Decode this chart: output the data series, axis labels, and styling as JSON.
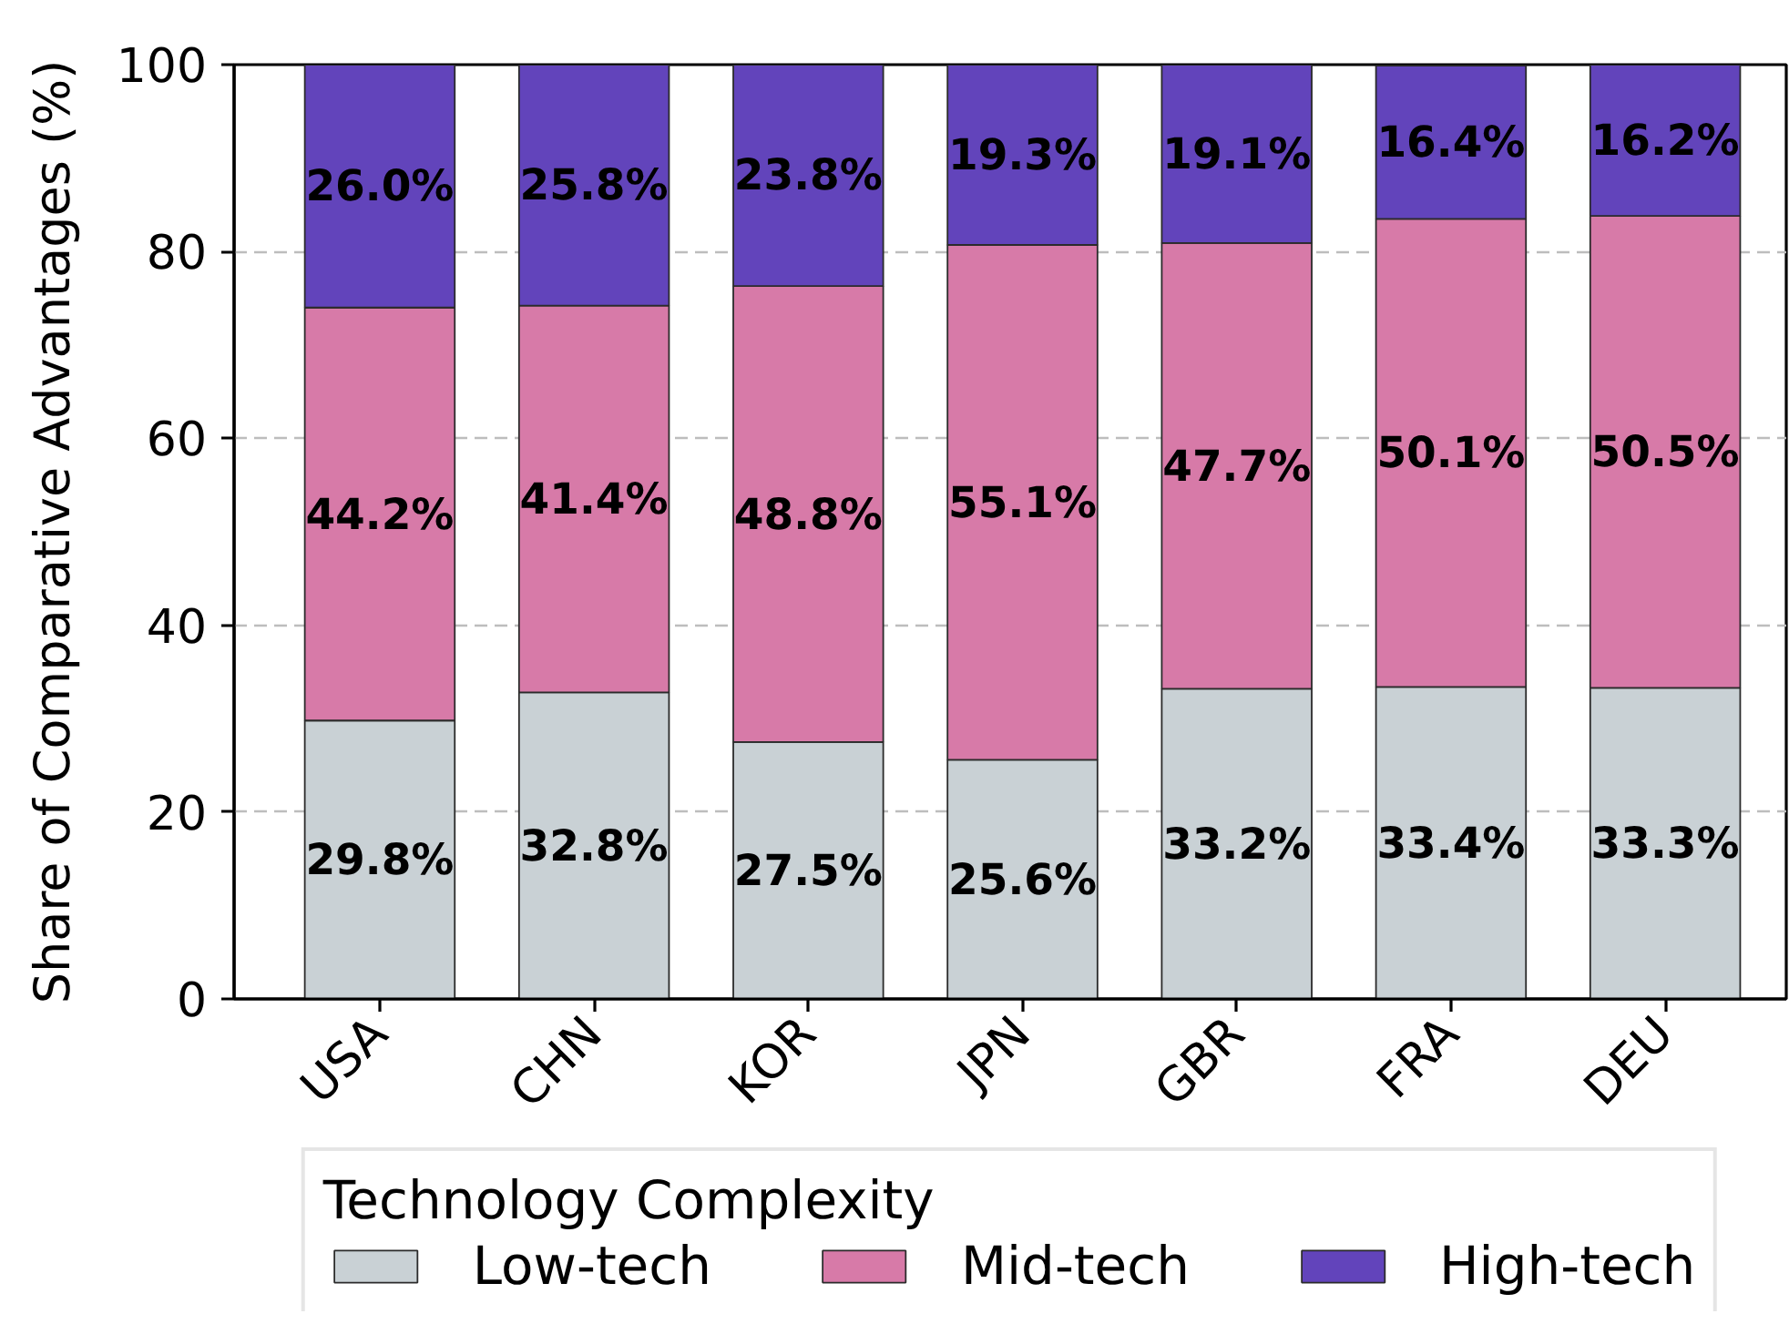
{
  "chart_data": {
    "type": "bar",
    "stacked": true,
    "categories": [
      "USA",
      "CHN",
      "KOR",
      "JPN",
      "GBR",
      "FRA",
      "DEU"
    ],
    "ylabel": "Share of Comparative Advantages (%)",
    "legend_title": "Technology Complexity",
    "legend": "bottom",
    "grid": "y",
    "ylim": [
      0,
      100
    ],
    "yticks": [
      0,
      20,
      40,
      60,
      80,
      100
    ],
    "series": [
      {
        "name": "Low-tech",
        "color": "#c9d1d5",
        "values": [
          29.8,
          32.8,
          27.5,
          25.6,
          33.2,
          33.4,
          33.3
        ],
        "value_labels": [
          "29.8%",
          "32.8%",
          "27.5%",
          "25.6%",
          "33.2%",
          "33.4%",
          "33.3%"
        ]
      },
      {
        "name": "Mid-tech",
        "color": "#d77aa8",
        "values": [
          44.2,
          41.4,
          48.8,
          55.1,
          47.7,
          50.1,
          50.5
        ],
        "value_labels": [
          "44.2%",
          "41.4%",
          "48.8%",
          "55.1%",
          "47.7%",
          "50.1%",
          "50.5%"
        ]
      },
      {
        "name": "High-tech",
        "color": "#6244bb",
        "values": [
          26.0,
          25.8,
          23.8,
          19.3,
          19.1,
          16.4,
          16.2
        ],
        "value_labels": [
          "26.0%",
          "25.8%",
          "23.8%",
          "19.3%",
          "19.1%",
          "16.4%",
          "16.2%"
        ]
      }
    ]
  }
}
